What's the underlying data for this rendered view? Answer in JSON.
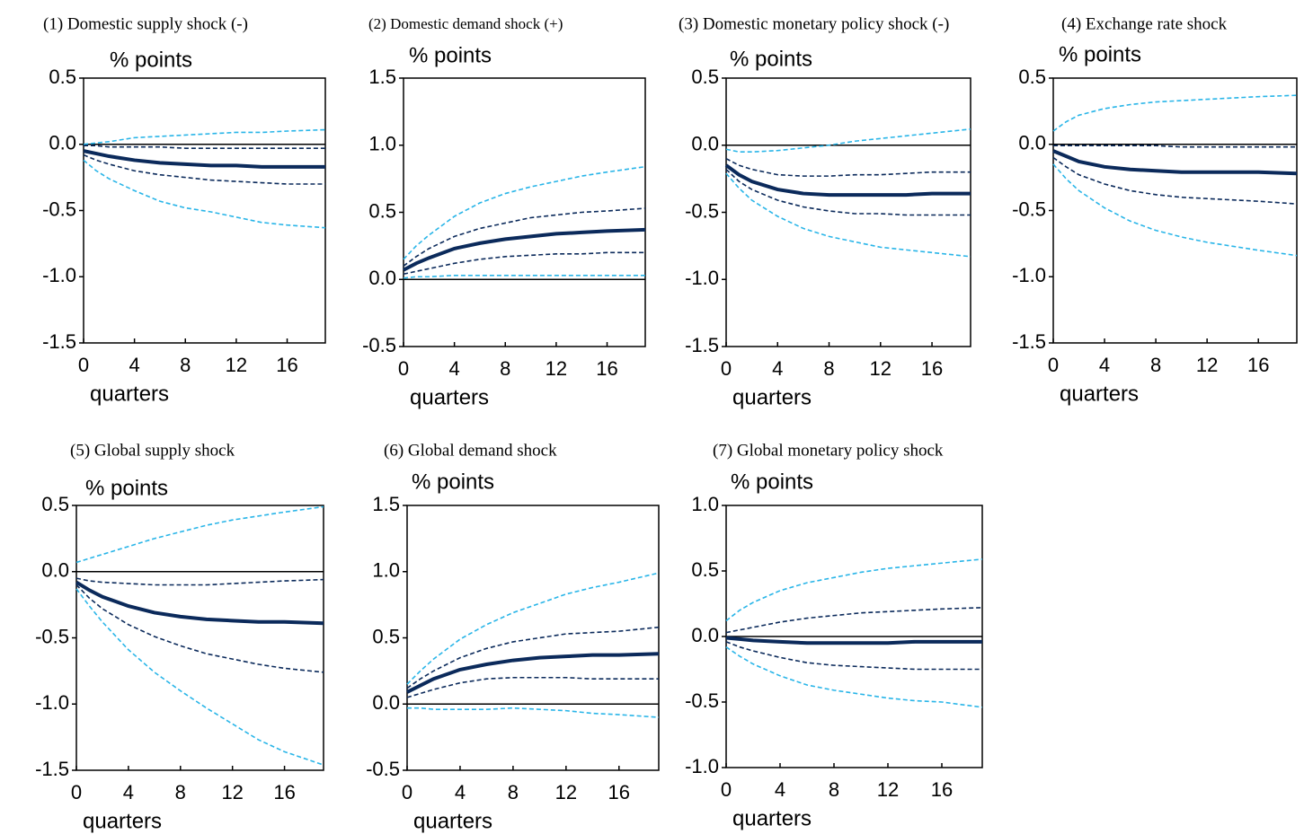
{
  "chart_data": [
    {
      "type": "line",
      "title": "(1) Domestic supply shock (-)",
      "y_label": "% points",
      "x_label": "quarters",
      "x": [
        0,
        1,
        2,
        4,
        6,
        8,
        10,
        12,
        14,
        16,
        19
      ],
      "xlim": [
        0,
        19
      ],
      "xticks": [
        0,
        4,
        8,
        12,
        16
      ],
      "ylim": [
        -1.5,
        0.5
      ],
      "yticks": [
        0.5,
        {
          "value": 0,
          "label": "0.0"
        },
        -0.5,
        {
          "value": -1,
          "label": "-1.0"
        },
        -1.5
      ],
      "series": [
        {
          "color": "#29b5e8",
          "style": "dashed",
          "values": [
            0,
            0.01,
            0.02,
            0.05,
            0.06,
            0.07,
            0.08,
            0.09,
            0.09,
            0.1,
            0.11
          ]
        },
        {
          "color": "#0b2a5b",
          "style": "dashed",
          "values": [
            -0.01,
            -0.01,
            -0.02,
            -0.02,
            -0.02,
            -0.03,
            -0.03,
            -0.03,
            -0.03,
            -0.03,
            -0.03
          ]
        },
        {
          "color": "#0b2a5b",
          "style": "solid",
          "values": [
            -0.05,
            -0.07,
            -0.09,
            -0.12,
            -0.14,
            -0.15,
            -0.16,
            -0.16,
            -0.17,
            -0.17,
            -0.17
          ]
        },
        {
          "color": "#0b2a5b",
          "style": "dashed",
          "values": [
            -0.08,
            -0.12,
            -0.15,
            -0.2,
            -0.23,
            -0.25,
            -0.27,
            -0.28,
            -0.29,
            -0.3,
            -0.3
          ]
        },
        {
          "color": "#29b5e8",
          "style": "dashed",
          "values": [
            -0.12,
            -0.2,
            -0.26,
            -0.35,
            -0.43,
            -0.48,
            -0.51,
            -0.55,
            -0.59,
            -0.61,
            -0.63
          ]
        }
      ]
    },
    {
      "type": "line",
      "title": "(2) Domestic demand shock (+)",
      "y_label": "% points",
      "x_label": "quarters",
      "x": [
        0,
        1,
        2,
        4,
        6,
        8,
        10,
        12,
        14,
        16,
        19
      ],
      "xlim": [
        0,
        19
      ],
      "xticks": [
        0,
        4,
        8,
        12,
        16
      ],
      "ylim": [
        -0.5,
        1.5
      ],
      "yticks": [
        1.5,
        {
          "value": 1,
          "label": "1.0"
        },
        0.5,
        {
          "value": 0,
          "label": "0.0"
        },
        -0.5
      ],
      "series": [
        {
          "color": "#29b5e8",
          "style": "dashed",
          "values": [
            0.15,
            0.25,
            0.33,
            0.47,
            0.57,
            0.64,
            0.69,
            0.73,
            0.77,
            0.8,
            0.84
          ]
        },
        {
          "color": "#0b2a5b",
          "style": "dashed",
          "values": [
            0.1,
            0.17,
            0.23,
            0.32,
            0.38,
            0.42,
            0.46,
            0.48,
            0.5,
            0.51,
            0.53
          ]
        },
        {
          "color": "#0b2a5b",
          "style": "solid",
          "values": [
            0.07,
            0.12,
            0.16,
            0.23,
            0.27,
            0.3,
            0.32,
            0.34,
            0.35,
            0.36,
            0.37
          ]
        },
        {
          "color": "#0b2a5b",
          "style": "dashed",
          "values": [
            0.04,
            0.06,
            0.08,
            0.12,
            0.15,
            0.17,
            0.18,
            0.19,
            0.19,
            0.2,
            0.2
          ]
        },
        {
          "color": "#29b5e8",
          "style": "dashed",
          "values": [
            0.01,
            0.02,
            0.02,
            0.03,
            0.03,
            0.03,
            0.03,
            0.03,
            0.03,
            0.03,
            0.03
          ]
        }
      ]
    },
    {
      "type": "line",
      "title": "(3) Domestic monetary policy shock (-)",
      "y_label": "% points",
      "x_label": "quarters",
      "x": [
        0,
        1,
        2,
        4,
        6,
        8,
        10,
        12,
        14,
        16,
        19
      ],
      "xlim": [
        0,
        19
      ],
      "xticks": [
        0,
        4,
        8,
        12,
        16
      ],
      "ylim": [
        -1.5,
        0.5
      ],
      "yticks": [
        0.5,
        {
          "value": 0,
          "label": "0.0"
        },
        -0.5,
        {
          "value": -1,
          "label": "-1.0"
        },
        -1.5
      ],
      "series": [
        {
          "color": "#29b5e8",
          "style": "dashed",
          "values": [
            -0.03,
            -0.05,
            -0.05,
            -0.04,
            -0.02,
            0,
            0.03,
            0.05,
            0.07,
            0.09,
            0.12
          ]
        },
        {
          "color": "#0b2a5b",
          "style": "dashed",
          "values": [
            -0.1,
            -0.15,
            -0.18,
            -0.22,
            -0.23,
            -0.23,
            -0.22,
            -0.22,
            -0.21,
            -0.2,
            -0.2
          ]
        },
        {
          "color": "#0b2a5b",
          "style": "solid",
          "values": [
            -0.15,
            -0.22,
            -0.27,
            -0.33,
            -0.36,
            -0.37,
            -0.37,
            -0.37,
            -0.37,
            -0.36,
            -0.36
          ]
        },
        {
          "color": "#0b2a5b",
          "style": "dashed",
          "values": [
            -0.18,
            -0.27,
            -0.33,
            -0.41,
            -0.46,
            -0.49,
            -0.51,
            -0.51,
            -0.52,
            -0.52,
            -0.52
          ]
        },
        {
          "color": "#29b5e8",
          "style": "dashed",
          "values": [
            -0.21,
            -0.32,
            -0.41,
            -0.53,
            -0.62,
            -0.68,
            -0.72,
            -0.76,
            -0.78,
            -0.8,
            -0.83
          ]
        }
      ]
    },
    {
      "type": "line",
      "title": "(4) Exchange rate shock",
      "y_label": "% points",
      "x_label": "quarters",
      "x": [
        0,
        1,
        2,
        4,
        6,
        8,
        10,
        12,
        14,
        16,
        19
      ],
      "xlim": [
        0,
        19
      ],
      "xticks": [
        0,
        4,
        8,
        12,
        16
      ],
      "ylim": [
        -1.5,
        0.5
      ],
      "yticks": [
        0.5,
        {
          "value": 0,
          "label": "0.0"
        },
        -0.5,
        {
          "value": -1,
          "label": "-1.0"
        },
        -1.5
      ],
      "series": [
        {
          "color": "#29b5e8",
          "style": "dashed",
          "values": [
            0.1,
            0.17,
            0.22,
            0.27,
            0.3,
            0.32,
            0.33,
            0.34,
            0.35,
            0.36,
            0.37
          ]
        },
        {
          "color": "#0b2a5b",
          "style": "dashed",
          "values": [
            -0.01,
            -0.01,
            -0.01,
            -0.01,
            -0.01,
            -0.01,
            -0.02,
            -0.02,
            -0.02,
            -0.02,
            -0.02
          ]
        },
        {
          "color": "#0b2a5b",
          "style": "solid",
          "values": [
            -0.05,
            -0.09,
            -0.13,
            -0.17,
            -0.19,
            -0.2,
            -0.21,
            -0.21,
            -0.21,
            -0.21,
            -0.22
          ]
        },
        {
          "color": "#0b2a5b",
          "style": "dashed",
          "values": [
            -0.1,
            -0.17,
            -0.23,
            -0.3,
            -0.35,
            -0.38,
            -0.4,
            -0.41,
            -0.42,
            -0.43,
            -0.45
          ]
        },
        {
          "color": "#29b5e8",
          "style": "dashed",
          "values": [
            -0.15,
            -0.26,
            -0.35,
            -0.48,
            -0.58,
            -0.65,
            -0.7,
            -0.74,
            -0.77,
            -0.8,
            -0.84
          ]
        }
      ]
    },
    {
      "type": "line",
      "title": "(5) Global supply shock",
      "y_label": "% points",
      "x_label": "quarters",
      "x": [
        0,
        1,
        2,
        4,
        6,
        8,
        10,
        12,
        14,
        16,
        19
      ],
      "xlim": [
        0,
        19
      ],
      "xticks": [
        0,
        4,
        8,
        12,
        16
      ],
      "ylim": [
        -1.5,
        0.5
      ],
      "yticks": [
        0.5,
        {
          "value": 0,
          "label": "0.0"
        },
        -0.5,
        {
          "value": -1,
          "label": "-1.0"
        },
        -1.5
      ],
      "series": [
        {
          "color": "#29b5e8",
          "style": "dashed",
          "values": [
            0.07,
            0.1,
            0.13,
            0.19,
            0.25,
            0.3,
            0.35,
            0.39,
            0.42,
            0.45,
            0.49
          ]
        },
        {
          "color": "#0b2a5b",
          "style": "dashed",
          "values": [
            -0.05,
            -0.07,
            -0.08,
            -0.09,
            -0.1,
            -0.1,
            -0.1,
            -0.09,
            -0.08,
            -0.07,
            -0.06
          ]
        },
        {
          "color": "#0b2a5b",
          "style": "solid",
          "values": [
            -0.08,
            -0.14,
            -0.19,
            -0.26,
            -0.31,
            -0.34,
            -0.36,
            -0.37,
            -0.38,
            -0.38,
            -0.39
          ]
        },
        {
          "color": "#0b2a5b",
          "style": "dashed",
          "values": [
            -0.1,
            -0.2,
            -0.28,
            -0.4,
            -0.49,
            -0.56,
            -0.62,
            -0.66,
            -0.7,
            -0.73,
            -0.76
          ]
        },
        {
          "color": "#29b5e8",
          "style": "dashed",
          "values": [
            -0.13,
            -0.26,
            -0.38,
            -0.59,
            -0.76,
            -0.9,
            -1.03,
            -1.15,
            -1.27,
            -1.36,
            -1.46
          ]
        }
      ]
    },
    {
      "type": "line",
      "title": "(6) Global demand shock",
      "y_label": "% points",
      "x_label": "quarters",
      "x": [
        0,
        1,
        2,
        4,
        6,
        8,
        10,
        12,
        14,
        16,
        19
      ],
      "xlim": [
        0,
        19
      ],
      "xticks": [
        0,
        4,
        8,
        12,
        16
      ],
      "ylim": [
        -0.5,
        1.5
      ],
      "yticks": [
        1.5,
        {
          "value": 1,
          "label": "1.0"
        },
        0.5,
        {
          "value": 0,
          "label": "0.0"
        },
        -0.5
      ],
      "series": [
        {
          "color": "#29b5e8",
          "style": "dashed",
          "values": [
            0.15,
            0.25,
            0.34,
            0.49,
            0.6,
            0.69,
            0.76,
            0.83,
            0.88,
            0.92,
            0.99
          ]
        },
        {
          "color": "#0b2a5b",
          "style": "dashed",
          "values": [
            0.12,
            0.19,
            0.25,
            0.35,
            0.42,
            0.47,
            0.5,
            0.53,
            0.54,
            0.55,
            0.58
          ]
        },
        {
          "color": "#0b2a5b",
          "style": "solid",
          "values": [
            0.09,
            0.14,
            0.19,
            0.26,
            0.3,
            0.33,
            0.35,
            0.36,
            0.37,
            0.37,
            0.38
          ]
        },
        {
          "color": "#0b2a5b",
          "style": "dashed",
          "values": [
            0.05,
            0.08,
            0.11,
            0.16,
            0.19,
            0.2,
            0.2,
            0.2,
            0.19,
            0.19,
            0.19
          ]
        },
        {
          "color": "#29b5e8",
          "style": "dashed",
          "values": [
            -0.03,
            -0.03,
            -0.04,
            -0.04,
            -0.04,
            -0.03,
            -0.04,
            -0.05,
            -0.07,
            -0.08,
            -0.1
          ]
        }
      ]
    },
    {
      "type": "line",
      "title": "(7) Global monetary policy shock",
      "y_label": "% points",
      "x_label": "quarters",
      "x": [
        0,
        1,
        2,
        4,
        6,
        8,
        10,
        12,
        14,
        16,
        19
      ],
      "xlim": [
        0,
        19
      ],
      "xticks": [
        0,
        4,
        8,
        12,
        16
      ],
      "ylim": [
        -1,
        1
      ],
      "yticks": [
        {
          "value": 1,
          "label": "1.0"
        },
        0.5,
        {
          "value": 0,
          "label": "0.0"
        },
        -0.5,
        {
          "value": -1,
          "label": "-1.0"
        }
      ],
      "series": [
        {
          "color": "#29b5e8",
          "style": "dashed",
          "values": [
            0.12,
            0.2,
            0.26,
            0.35,
            0.41,
            0.45,
            0.49,
            0.52,
            0.54,
            0.56,
            0.59
          ]
        },
        {
          "color": "#0b2a5b",
          "style": "dashed",
          "values": [
            0.03,
            0.05,
            0.07,
            0.11,
            0.14,
            0.16,
            0.18,
            0.19,
            0.2,
            0.21,
            0.22
          ]
        },
        {
          "color": "#0b2a5b",
          "style": "solid",
          "values": [
            -0.01,
            -0.02,
            -0.03,
            -0.04,
            -0.05,
            -0.05,
            -0.05,
            -0.05,
            -0.04,
            -0.04,
            -0.04
          ]
        },
        {
          "color": "#0b2a5b",
          "style": "dashed",
          "values": [
            -0.04,
            -0.08,
            -0.11,
            -0.16,
            -0.2,
            -0.22,
            -0.23,
            -0.24,
            -0.25,
            -0.25,
            -0.25
          ]
        },
        {
          "color": "#29b5e8",
          "style": "dashed",
          "values": [
            -0.08,
            -0.15,
            -0.21,
            -0.3,
            -0.37,
            -0.41,
            -0.44,
            -0.47,
            -0.49,
            -0.5,
            -0.54
          ]
        }
      ]
    }
  ]
}
